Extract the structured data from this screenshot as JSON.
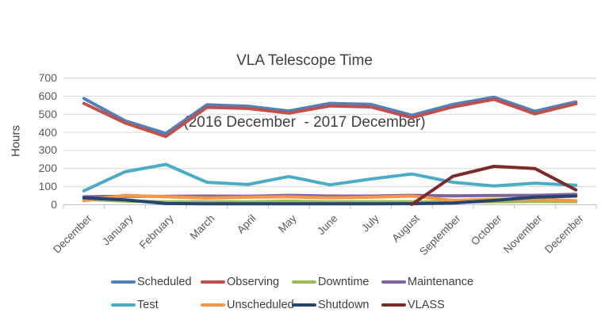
{
  "title": {
    "line1": "VLA Telescope Time",
    "line2": "(2016 December  - 2017 December)"
  },
  "chart_data": {
    "type": "line",
    "title": "VLA Telescope Time (2016 December - 2017 December)",
    "xlabel": "",
    "ylabel": "Hours",
    "ylim": [
      0,
      700
    ],
    "y_ticks": [
      0,
      100,
      200,
      300,
      400,
      500,
      600,
      700
    ],
    "grid": true,
    "legend_position": "bottom",
    "categories": [
      "December",
      "January",
      "February",
      "March",
      "April",
      "May",
      "June",
      "July",
      "August",
      "September",
      "October",
      "November",
      "December"
    ],
    "series": [
      {
        "name": "Scheduled",
        "color": "#4F81BD",
        "values": [
          585,
          462,
          392,
          550,
          542,
          516,
          558,
          552,
          492,
          552,
          592,
          514,
          566
        ]
      },
      {
        "name": "Observing",
        "color": "#C0504D",
        "values": [
          558,
          450,
          375,
          536,
          530,
          504,
          544,
          538,
          479,
          538,
          580,
          500,
          556
        ]
      },
      {
        "name": "Downtime",
        "color": "#9BBB59",
        "values": [
          28,
          18,
          14,
          15,
          14,
          18,
          14,
          15,
          15,
          14,
          14,
          16,
          15
        ]
      },
      {
        "name": "Maintenance",
        "color": "#8064A2",
        "values": [
          42,
          45,
          44,
          46,
          45,
          50,
          46,
          46,
          50,
          47,
          49,
          50,
          55
        ]
      },
      {
        "name": "Test",
        "color": "#4BACC6",
        "values": [
          75,
          180,
          221,
          122,
          110,
          154,
          108,
          140,
          168,
          122,
          102,
          117,
          106
        ]
      },
      {
        "name": "Unscheduled",
        "color": "#F79646",
        "values": [
          20,
          50,
          42,
          35,
          40,
          42,
          36,
          40,
          46,
          22,
          28,
          30,
          20
        ]
      },
      {
        "name": "Shutdown",
        "color": "#26456E",
        "values": [
          36,
          25,
          5,
          3,
          3,
          3,
          3,
          3,
          4,
          8,
          22,
          40,
          46
        ]
      },
      {
        "name": "VLASS",
        "color": "#7B2C2A",
        "values": [
          null,
          null,
          null,
          null,
          null,
          null,
          null,
          null,
          0,
          155,
          210,
          198,
          80
        ]
      }
    ]
  },
  "colors": {
    "gridline": "#D6D6D6",
    "axis": "#BFBFBF",
    "title_text": "#404040",
    "tick_text": "#595959"
  }
}
